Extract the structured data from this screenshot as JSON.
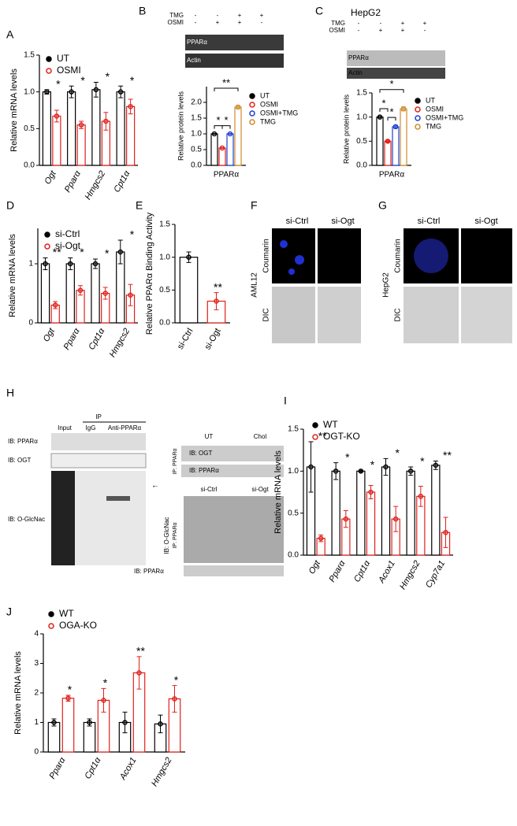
{
  "chart_data": [
    {
      "type": "bar",
      "label": "A",
      "ylabel": "Relative mRNA levels",
      "categories": [
        "Ogt",
        "Pparα",
        "Hmgcs2",
        "Cpt1α"
      ],
      "series": [
        {
          "name": "UT",
          "color": "#000000",
          "values": [
            1.0,
            1.0,
            1.03,
            1.0
          ],
          "errors": [
            0.03,
            0.08,
            0.1,
            0.08
          ]
        },
        {
          "name": "OSMI",
          "color": "#e0201b",
          "values": [
            0.67,
            0.55,
            0.6,
            0.8
          ],
          "errors": [
            0.08,
            0.05,
            0.12,
            0.1
          ]
        }
      ],
      "sig": [
        "*",
        "*",
        "*",
        "*"
      ],
      "ylim": [
        0,
        1.5
      ],
      "yticks": [
        {
          "value": 0,
          "label": "0.0"
        },
        {
          "value": 0.5,
          "label": "0.5"
        },
        {
          "value": 1,
          "label": "1.0"
        },
        {
          "value": 1.5,
          "label": "1.5"
        }
      ],
      "legend": "top-left"
    },
    {
      "type": "bar",
      "label": "B",
      "ylabel": "Relative protein levels",
      "categories": [
        "PPARα"
      ],
      "series": [
        {
          "name": "UT",
          "color": "#000000",
          "values": [
            1.0
          ],
          "errors": [
            0.01
          ]
        },
        {
          "name": "OSMI",
          "color": "#e0201b",
          "values": [
            0.55
          ],
          "errors": [
            0.01
          ]
        },
        {
          "name": "OSMI+TMG",
          "color": "#1f3fd0",
          "values": [
            1.0
          ],
          "errors": [
            0.01
          ]
        },
        {
          "name": "TMG",
          "color": "#d08a2a",
          "values": [
            1.85
          ],
          "errors": [
            0.05
          ]
        }
      ],
      "brackets": [
        "*",
        "*",
        "**"
      ],
      "ylim": [
        0,
        2.5
      ],
      "yticks": [
        {
          "value": 0,
          "label": "0.0"
        },
        {
          "value": 0.5,
          "label": "0.5"
        },
        {
          "value": 1,
          "label": "1.0"
        },
        {
          "value": 1.5,
          "label": "1.5"
        },
        {
          "value": 2,
          "label": "2.0"
        }
      ],
      "legend": "right"
    },
    {
      "type": "bar",
      "label": "C",
      "title": "HepG2",
      "ylabel": "Relative protein levels",
      "categories": [
        "PPARα"
      ],
      "series": [
        {
          "name": "UT",
          "color": "#000000",
          "values": [
            1.0
          ],
          "errors": [
            0.01
          ]
        },
        {
          "name": "OSMI",
          "color": "#e0201b",
          "values": [
            0.5
          ],
          "errors": [
            0.02
          ]
        },
        {
          "name": "OSMI+TMG",
          "color": "#1f3fd0",
          "values": [
            0.8
          ],
          "errors": [
            0.03
          ]
        },
        {
          "name": "TMG",
          "color": "#d08a2a",
          "values": [
            1.17
          ],
          "errors": [
            0.04
          ]
        }
      ],
      "brackets": [
        "*",
        "*",
        "*"
      ],
      "ylim": [
        0,
        1.5
      ],
      "yticks": [
        {
          "value": 0,
          "label": "0.0"
        },
        {
          "value": 0.5,
          "label": "0.5"
        },
        {
          "value": 1,
          "label": "1.0"
        },
        {
          "value": 1.5,
          "label": "1.5"
        }
      ],
      "legend": "right"
    },
    {
      "type": "bar",
      "label": "D",
      "ylabel": "Relative mRNA levels",
      "categories": [
        "Ogt",
        "Pparα",
        "Cpt1α",
        "Hmgcs2"
      ],
      "series": [
        {
          "name": "si-Ctrl",
          "color": "#000000",
          "values": [
            1.0,
            1.0,
            1.0,
            1.2
          ],
          "errors": [
            0.1,
            0.1,
            0.08,
            0.2
          ]
        },
        {
          "name": "si-Ogt",
          "color": "#e0201b",
          "values": [
            0.3,
            0.55,
            0.5,
            0.47
          ],
          "errors": [
            0.06,
            0.08,
            0.1,
            0.18
          ]
        }
      ],
      "sig": [
        "**",
        "*",
        "*",
        "*"
      ],
      "ylim": [
        0,
        1.6
      ],
      "yticks": [
        0,
        1
      ],
      "legend": "top-left"
    },
    {
      "type": "bar",
      "label": "E",
      "ylabel": "Relative PPARα Binding Activity",
      "categories": [
        "si-Ctrl",
        "si-Ogt"
      ],
      "values": [
        1.0,
        0.33
      ],
      "errors": [
        0.08,
        0.13
      ],
      "colors": [
        "#000000",
        "#e0201b"
      ],
      "sig": [
        null,
        "**"
      ],
      "ylim": [
        0,
        1.5
      ],
      "yticks": [
        {
          "value": 0,
          "label": "0.0"
        },
        {
          "value": 0.5,
          "label": "0.5"
        },
        {
          "value": 1,
          "label": "1.0"
        },
        {
          "value": 1.5,
          "label": "1.5"
        }
      ]
    },
    {
      "type": "bar",
      "label": "I",
      "ylabel": "Relative mRNA levels",
      "categories": [
        "Ogt",
        "Pparα",
        "Cpt1α",
        "Acox1",
        "Hmgcs2",
        "Cyp7a1"
      ],
      "series": [
        {
          "name": "WT",
          "color": "#000000",
          "values": [
            1.05,
            1.0,
            1.0,
            1.05,
            1.0,
            1.07
          ],
          "errors": [
            0.3,
            0.1,
            0.01,
            0.1,
            0.05,
            0.05
          ]
        },
        {
          "name": "OGT-KO",
          "color": "#e0201b",
          "values": [
            0.2,
            0.43,
            0.75,
            0.43,
            0.7,
            0.27
          ],
          "errors": [
            0.04,
            0.1,
            0.08,
            0.15,
            0.12,
            0.18
          ]
        }
      ],
      "sig": [
        "**",
        "*",
        "*",
        "*",
        "*",
        "**"
      ],
      "ylim": [
        0,
        1.5
      ],
      "yticks": [
        {
          "value": 0,
          "label": "0.0"
        },
        {
          "value": 0.5,
          "label": "0.5"
        },
        {
          "value": 1,
          "label": "1.0"
        },
        {
          "value": 1.5,
          "label": "1.5"
        }
      ],
      "legend": "top-left"
    },
    {
      "type": "bar",
      "label": "J",
      "ylabel": "Relative mRNA levels",
      "categories": [
        "Pparα",
        "Cpt1α",
        "Acox1",
        "Hmgcs2"
      ],
      "series": [
        {
          "name": "WT",
          "color": "#000000",
          "values": [
            1.0,
            1.0,
            1.0,
            0.95
          ],
          "errors": [
            0.12,
            0.12,
            0.35,
            0.3
          ]
        },
        {
          "name": "OGA-KO",
          "color": "#e0201b",
          "values": [
            1.82,
            1.75,
            2.68,
            1.8
          ],
          "errors": [
            0.1,
            0.4,
            0.55,
            0.45
          ]
        }
      ],
      "sig": [
        "*",
        "*",
        "**",
        "*"
      ],
      "ylim": [
        0,
        4
      ],
      "yticks": [
        0,
        1,
        2,
        3,
        4
      ],
      "legend": "top-left"
    }
  ],
  "figure": {
    "blot_b": {
      "rows": [
        "TMG",
        "OSMI"
      ],
      "signs": [
        [
          "-",
          "-",
          "+",
          "+"
        ],
        [
          "-",
          "+",
          "+",
          "-"
        ]
      ],
      "bands": [
        "PPARα",
        "Actin"
      ]
    },
    "blot_c": {
      "rows": [
        "TMG",
        "OSMI"
      ],
      "signs": [
        [
          "-",
          "-",
          "+",
          "+"
        ],
        [
          "-",
          "+",
          "+",
          "-"
        ]
      ],
      "bands": [
        "PPARα",
        "Actin"
      ]
    },
    "panel_f": {
      "label": "F",
      "cell": "AML12",
      "columns": [
        "si-Ctrl",
        "si-Ogt"
      ],
      "rows": [
        "Coumarin",
        "DIC"
      ]
    },
    "panel_g": {
      "label": "G",
      "cell": "HepG2",
      "columns": [
        "si-Ctrl",
        "si-Ogt"
      ],
      "rows": [
        "Coumarin",
        "DIC"
      ]
    },
    "panel_h": {
      "label": "H",
      "ip": "IP",
      "lanes": [
        "Input",
        "IgG",
        "Anti-PPARα"
      ],
      "left_blots": [
        "IB: PPARα",
        "IB: OGT",
        "IB: O-GlcNac"
      ],
      "right_top_groups": [
        "UT",
        "Chol"
      ],
      "right_top_ip": "IP: PPARα",
      "right_top_blots": [
        "IB: OGT",
        "IB: PPARα"
      ],
      "right_bottom_groups": [
        "si-Ctrl",
        "si-Ogt"
      ],
      "right_bottom_ip": "IP: PPARα",
      "right_bottom_blots": [
        "IB: O-GlcNac",
        "IB: PPARα"
      ]
    }
  }
}
